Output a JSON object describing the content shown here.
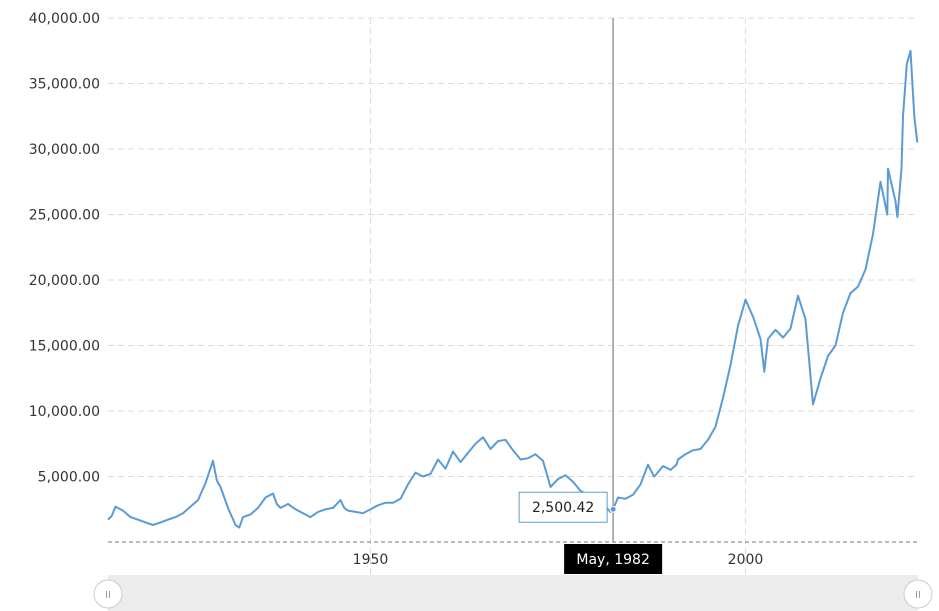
{
  "chart_data": {
    "type": "line",
    "title": "",
    "xlabel": "",
    "ylabel": "",
    "xlim": [
      1915,
      2023
    ],
    "ylim": [
      0,
      40000
    ],
    "y_ticks": [
      {
        "value": 5000,
        "label": "5,000.00"
      },
      {
        "value": 10000,
        "label": "10,000.00"
      },
      {
        "value": 15000,
        "label": "15,000.00"
      },
      {
        "value": 20000,
        "label": "20,000.00"
      },
      {
        "value": 25000,
        "label": "25,000.00"
      },
      {
        "value": 30000,
        "label": "30,000.00"
      },
      {
        "value": 35000,
        "label": "35,000.00"
      },
      {
        "value": 40000,
        "label": "40,000.00"
      }
    ],
    "x_ticks": [
      {
        "value": 1950,
        "label": "1950"
      },
      {
        "value": 2000,
        "label": "2000"
      }
    ],
    "grid": true,
    "color": "#5b9bd5",
    "crosshair": {
      "x": 1982.35,
      "y": 2500.42,
      "value_label": "2,500.42",
      "date_label": "May, 1982"
    },
    "series": [
      {
        "x": [
          1915.0,
          1915.5,
          1916.0,
          1917.0,
          1918.0,
          1919.0,
          1920.0,
          1921.0,
          1922.0,
          1923.0,
          1924.0,
          1925.0,
          1926.0,
          1927.0,
          1928.0,
          1929.0,
          1929.5,
          1930.0,
          1931.0,
          1932.0,
          1932.5,
          1933.0,
          1934.0,
          1935.0,
          1936.0,
          1937.0,
          1937.5,
          1938.0,
          1939.0,
          1940.0,
          1941.0,
          1942.0,
          1943.0,
          1944.0,
          1945.0,
          1946.0,
          1946.5,
          1947.0,
          1948.0,
          1949.0,
          1950.0,
          1951.0,
          1952.0,
          1953.0,
          1954.0,
          1955.0,
          1956.0,
          1957.0,
          1958.0,
          1959.0,
          1960.0,
          1961.0,
          1962.0,
          1963.0,
          1964.0,
          1965.0,
          1966.0,
          1967.0,
          1968.0,
          1969.0,
          1970.0,
          1971.0,
          1972.0,
          1973.0,
          1974.0,
          1975.0,
          1976.0,
          1977.0,
          1978.0,
          1979.0,
          1980.0,
          1981.0,
          1982.0,
          1982.35,
          1983.0,
          1984.0,
          1985.0,
          1986.0,
          1987.0,
          1987.8,
          1988.0,
          1989.0,
          1990.0,
          1990.8,
          1991.0,
          1992.0,
          1993.0,
          1994.0,
          1995.0,
          1996.0,
          1997.0,
          1998.0,
          1999.0,
          2000.0,
          2001.0,
          2002.0,
          2002.5,
          2003.0,
          2004.0,
          2005.0,
          2006.0,
          2007.0,
          2008.0,
          2009.0,
          2010.0,
          2011.0,
          2012.0,
          2013.0,
          2014.0,
          2015.0,
          2016.0,
          2017.0,
          2018.0,
          2018.9,
          2019.0,
          2020.0,
          2020.25,
          2020.8,
          2021.0,
          2021.5,
          2022.0,
          2022.5,
          2022.9
        ],
        "y": [
          1700,
          2000,
          2700,
          2400,
          1900,
          1700,
          1500,
          1300,
          1500,
          1700,
          1900,
          2200,
          2700,
          3200,
          4500,
          6200,
          4700,
          4200,
          2600,
          1300,
          1100,
          1900,
          2100,
          2600,
          3400,
          3700,
          2900,
          2600,
          2900,
          2500,
          2200,
          1900,
          2300,
          2500,
          2600,
          3200,
          2600,
          2400,
          2300,
          2200,
          2500,
          2800,
          3000,
          3000,
          3300,
          4400,
          5300,
          5000,
          5200,
          6300,
          5600,
          6900,
          6100,
          6800,
          7500,
          8000,
          7100,
          7700,
          7800,
          7000,
          6300,
          6400,
          6700,
          6200,
          4200,
          4800,
          5100,
          4600,
          3900,
          3600,
          3200,
          2900,
          2300,
          2500,
          3400,
          3300,
          3600,
          4400,
          5900,
          5000,
          5100,
          5800,
          5500,
          5900,
          6300,
          6700,
          7000,
          7100,
          7800,
          8800,
          11000,
          13500,
          16500,
          18500,
          17200,
          15500,
          13000,
          15500,
          16200,
          15600,
          16300,
          18800,
          17000,
          10500,
          12500,
          14200,
          15000,
          17500,
          19000,
          19500,
          20800,
          23500,
          27500,
          25000,
          28500,
          26000,
          24800,
          28500,
          32500,
          36500,
          37500,
          32500,
          30500
        ]
      }
    ]
  }
}
